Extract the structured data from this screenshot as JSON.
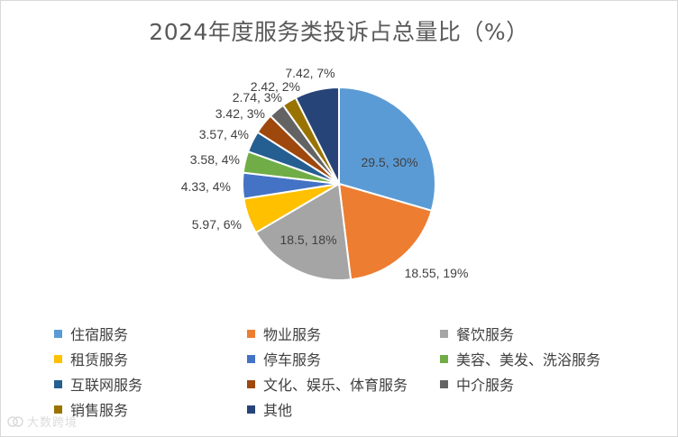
{
  "chart_data": {
    "type": "pie",
    "title": "2024年度服务类投诉占总量比（%）",
    "legend_position": "bottom",
    "slices": [
      {
        "name": "住宿服务",
        "value": 29.5,
        "percent_label": "30%",
        "label": "29.5, 30%",
        "color": "#5B9BD5"
      },
      {
        "name": "物业服务",
        "value": 18.55,
        "percent_label": "19%",
        "label": "18.55, 19%",
        "color": "#ED7D31"
      },
      {
        "name": "餐饮服务",
        "value": 18.5,
        "percent_label": "18%",
        "label": "18.5, 18%",
        "color": "#A5A5A5"
      },
      {
        "name": "租赁服务",
        "value": 5.97,
        "percent_label": "6%",
        "label": "5.97, 6%",
        "color": "#FFC000"
      },
      {
        "name": "停车服务",
        "value": 4.33,
        "percent_label": "4%",
        "label": "4.33, 4%",
        "color": "#4472C4"
      },
      {
        "name": "美容、美发、洗浴服务",
        "value": 3.58,
        "percent_label": "4%",
        "label": "3.58, 4%",
        "color": "#70AD47"
      },
      {
        "name": "互联网服务",
        "value": 3.57,
        "percent_label": "4%",
        "label": "3.57, 4%",
        "color": "#255E91"
      },
      {
        "name": "文化、娱乐、体育服务",
        "value": 3.42,
        "percent_label": "3%",
        "label": "3.42, 3%",
        "color": "#9E480E"
      },
      {
        "name": "中介服务",
        "value": 2.74,
        "percent_label": "3%",
        "label": "2.74, 3%",
        "color": "#636363"
      },
      {
        "name": "销售服务",
        "value": 2.42,
        "percent_label": "2%",
        "label": "2.42, 2%",
        "color": "#997300"
      },
      {
        "name": "其他",
        "value": 7.42,
        "percent_label": "7%",
        "label": "7.42, 7%",
        "color": "#264478"
      }
    ]
  },
  "watermark": {
    "text": "大数跨境"
  }
}
